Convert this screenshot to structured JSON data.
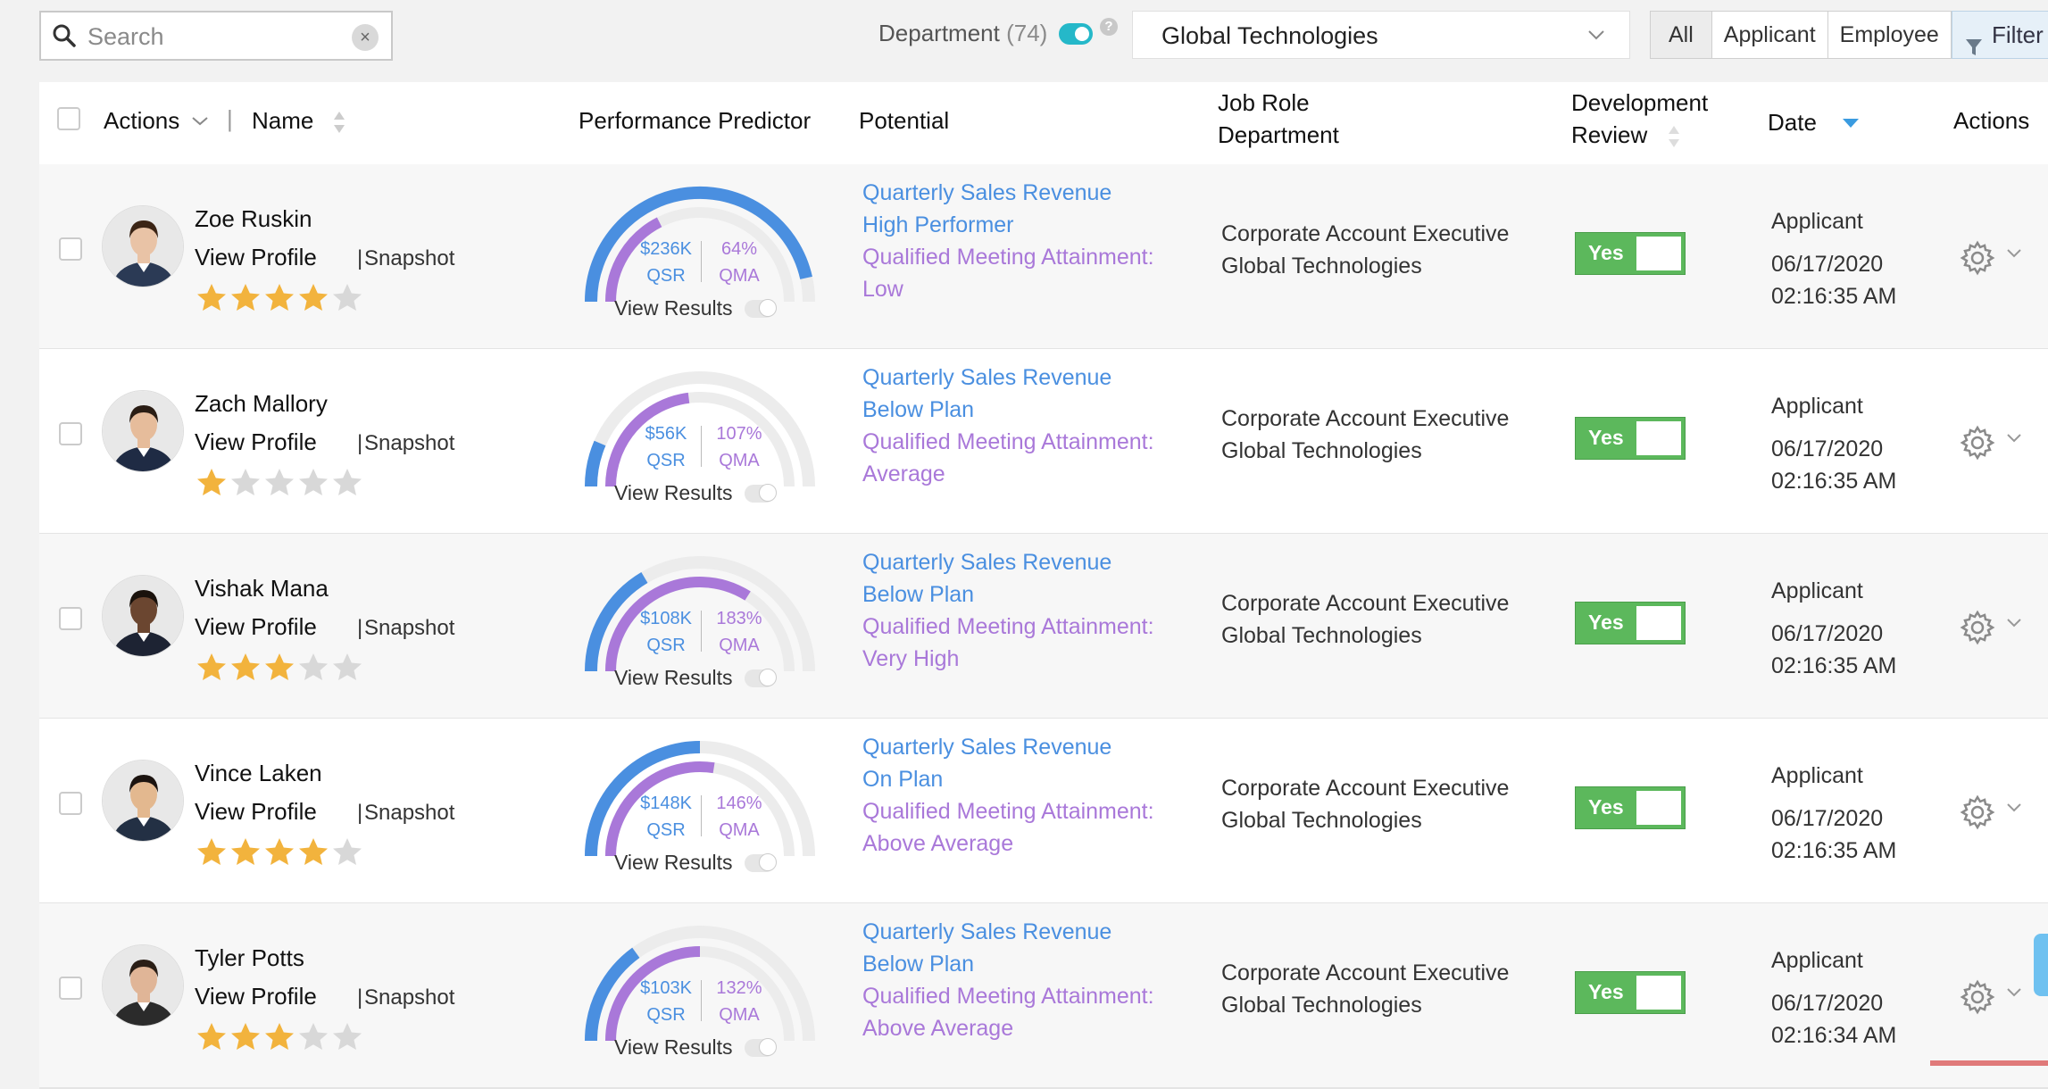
{
  "search": {
    "placeholder": "Search",
    "value": ""
  },
  "department": {
    "label": "Department",
    "count": "(74)",
    "selected": "Global Technologies"
  },
  "view_filter": {
    "options": [
      "All",
      "Applicant",
      "Employee"
    ],
    "selected": "All"
  },
  "filter_label": "Filter",
  "columns": {
    "actions": "Actions",
    "name": "Name",
    "performance": "Performance Predictor",
    "potential": "Potential",
    "job_role": "Job Role",
    "department": "Department",
    "dev_review_1": "Development",
    "dev_review_2": "Review",
    "date": "Date",
    "actions_right": "Actions"
  },
  "common": {
    "view_profile": "View Profile",
    "snapshot": "Snapshot",
    "view_results": "View Results",
    "qsr": "QSR",
    "qma": "QMA",
    "yes": "Yes",
    "separator": "|"
  },
  "rows": [
    {
      "name": "Zoe Ruskin",
      "rating": 4,
      "qsr": "$236K",
      "qma": "64%",
      "qsr_fraction": 0.93,
      "qma_fraction": 0.35,
      "potential": [
        "Quarterly Sales Revenue",
        "High Performer",
        "Qualified Meeting Attainment:",
        "Low"
      ],
      "job_role": "Corporate Account Executive",
      "department": "Global Technologies",
      "type": "Applicant",
      "date": "06/17/2020",
      "time": "02:16:35 AM"
    },
    {
      "name": "Zach Mallory",
      "rating": 1,
      "qsr": "$56K",
      "qma": "107%",
      "qsr_fraction": 0.13,
      "qma_fraction": 0.46,
      "potential": [
        "Quarterly Sales Revenue",
        "Below Plan",
        "Qualified Meeting Attainment:",
        "Average"
      ],
      "job_role": "Corporate Account Executive",
      "department": "Global Technologies",
      "type": "Applicant",
      "date": "06/17/2020",
      "time": "02:16:35 AM"
    },
    {
      "name": "Vishak Mana",
      "rating": 3,
      "qsr": "$108K",
      "qma": "183%",
      "qsr_fraction": 0.33,
      "qma_fraction": 0.68,
      "potential": [
        "Quarterly Sales Revenue",
        "Below Plan",
        "Qualified Meeting Attainment:",
        "Very High"
      ],
      "job_role": "Corporate Account Executive",
      "department": "Global Technologies",
      "type": "Applicant",
      "date": "06/17/2020",
      "time": "02:16:35 AM"
    },
    {
      "name": "Vince Laken",
      "rating": 4,
      "qsr": "$148K",
      "qma": "146%",
      "qsr_fraction": 0.5,
      "qma_fraction": 0.55,
      "potential": [
        "Quarterly Sales Revenue",
        "On Plan",
        "Qualified Meeting Attainment:",
        "Above Average"
      ],
      "job_role": "Corporate Account Executive",
      "department": "Global Technologies",
      "type": "Applicant",
      "date": "06/17/2020",
      "time": "02:16:35 AM"
    },
    {
      "name": "Tyler Potts",
      "rating": 3,
      "qsr": "$103K",
      "qma": "132%",
      "qsr_fraction": 0.3,
      "qma_fraction": 0.5,
      "potential": [
        "Quarterly Sales Revenue",
        "Below Plan",
        "Qualified Meeting Attainment:",
        "Above Average"
      ],
      "job_role": "Corporate Account Executive",
      "department": "Global Technologies",
      "type": "Applicant",
      "date": "06/17/2020",
      "time": "02:16:34 AM"
    }
  ],
  "colors": {
    "qsr": "#4a8fe0",
    "qma": "#a978d9",
    "track": "#ececec",
    "yes": "#5cb85c",
    "star_on": "#f2b33d",
    "star_off": "#d8d8d8"
  },
  "icons": [
    "search-icon",
    "clear-icon",
    "help-icon",
    "chevron-down-icon",
    "filter-icon",
    "sort-icon",
    "gear-icon",
    "star-icon",
    "avatar"
  ]
}
